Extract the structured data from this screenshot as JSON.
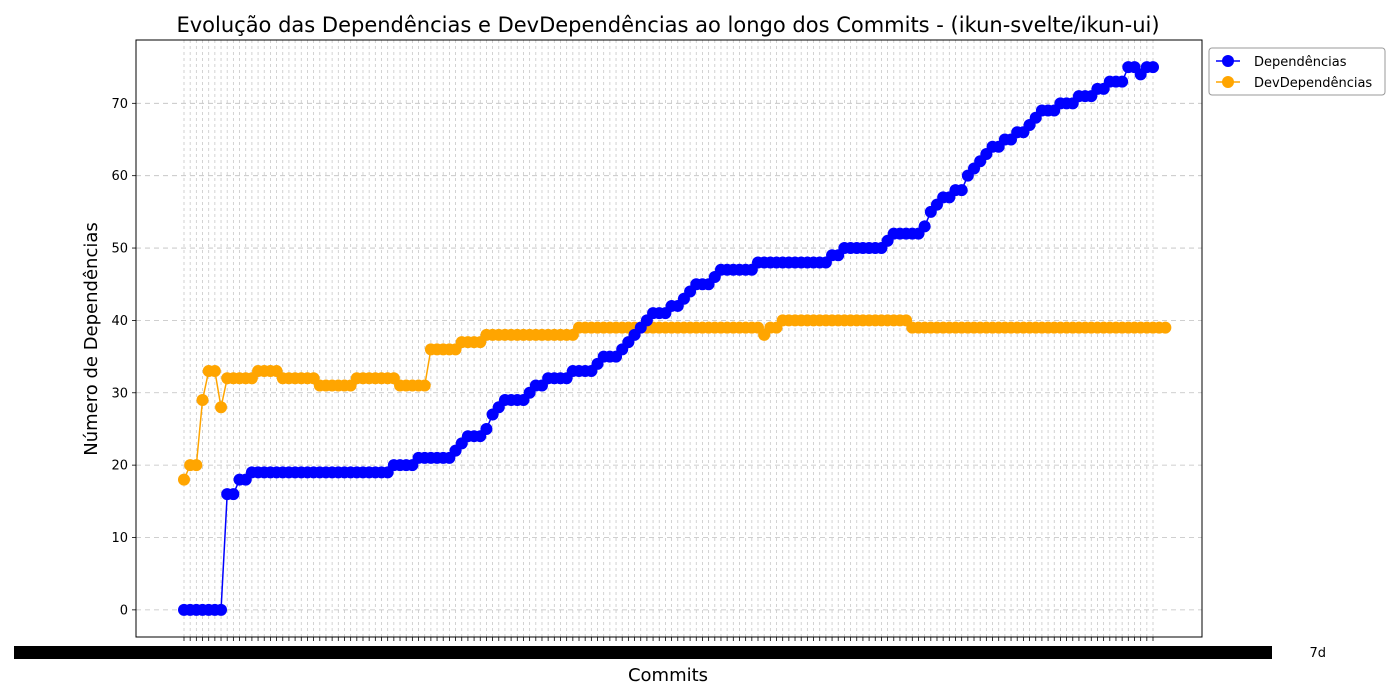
{
  "chart_data": {
    "type": "line",
    "title": "Evolução das Dependências e DevDependências ao longo dos Commits - (ikun-svelte/ikun-ui)",
    "xlabel": "Commits",
    "ylabel": "Número de Dependências",
    "ylim": [
      -3.75,
      78.75
    ],
    "yticks": [
      0,
      10,
      20,
      30,
      40,
      50,
      60,
      70
    ],
    "grid": true,
    "legend": "top-right-outside",
    "x_tick_labels_overlapping": true,
    "x_tick_label_first": "3e4",
    "x_tick_label_last": "7d",
    "series": [
      {
        "name": "Dependências",
        "color": "#0000ff",
        "values": [
          0,
          0,
          0,
          0,
          0,
          0,
          0,
          16,
          16,
          18,
          18,
          19,
          19,
          19,
          19,
          19,
          19,
          19,
          19,
          19,
          19,
          19,
          19,
          19,
          19,
          19,
          19,
          19,
          19,
          19,
          19,
          19,
          19,
          19,
          20,
          20,
          20,
          20,
          21,
          21,
          21,
          21,
          21,
          21,
          22,
          23,
          24,
          24,
          24,
          25,
          27,
          28,
          29,
          29,
          29,
          29,
          30,
          31,
          31,
          32,
          32,
          32,
          32,
          33,
          33,
          33,
          33,
          34,
          35,
          35,
          35,
          36,
          37,
          38,
          39,
          40,
          41,
          41,
          41,
          42,
          42,
          43,
          44,
          45,
          45,
          45,
          46,
          47,
          47,
          47,
          47,
          47,
          47,
          48,
          48,
          48,
          48,
          48,
          48,
          48,
          48,
          48,
          48,
          48,
          48,
          49,
          49,
          50,
          50,
          50,
          50,
          50,
          50,
          50,
          51,
          52,
          52,
          52,
          52,
          52,
          53,
          55,
          56,
          57,
          57,
          58,
          58,
          60,
          61,
          62,
          63,
          64,
          64,
          65,
          65,
          66,
          66,
          67,
          68,
          69,
          69,
          69,
          70,
          70,
          70,
          71,
          71,
          71,
          72,
          72,
          73,
          73,
          73,
          75,
          75,
          74,
          75,
          75
        ]
      },
      {
        "name": "DevDependências",
        "color": "#ffa500",
        "values": [
          18,
          20,
          20,
          29,
          33,
          33,
          28,
          32,
          32,
          32,
          32,
          32,
          33,
          33,
          33,
          33,
          32,
          32,
          32,
          32,
          32,
          32,
          31,
          31,
          31,
          31,
          31,
          31,
          32,
          32,
          32,
          32,
          32,
          32,
          32,
          31,
          31,
          31,
          31,
          31,
          36,
          36,
          36,
          36,
          36,
          37,
          37,
          37,
          37,
          38,
          38,
          38,
          38,
          38,
          38,
          38,
          38,
          38,
          38,
          38,
          38,
          38,
          38,
          38,
          39,
          39,
          39,
          39,
          39,
          39,
          39,
          39,
          39,
          39,
          39,
          39,
          39,
          39,
          39,
          39,
          39,
          39,
          39,
          39,
          39,
          39,
          39,
          39,
          39,
          39,
          39,
          39,
          39,
          39,
          38,
          39,
          39,
          40,
          40,
          40,
          40,
          40,
          40,
          40,
          40,
          40,
          40,
          40,
          40,
          40,
          40,
          40,
          40,
          40,
          40,
          40,
          40,
          40,
          39,
          39,
          39,
          39,
          39,
          39,
          39,
          39,
          39,
          39,
          39,
          39,
          39,
          39,
          39,
          39,
          39,
          39,
          39,
          39,
          39,
          39,
          39,
          39,
          39,
          39,
          39,
          39,
          39,
          39,
          39,
          39,
          39,
          39,
          39,
          39,
          39,
          39,
          39,
          39,
          39,
          39
        ]
      }
    ]
  }
}
